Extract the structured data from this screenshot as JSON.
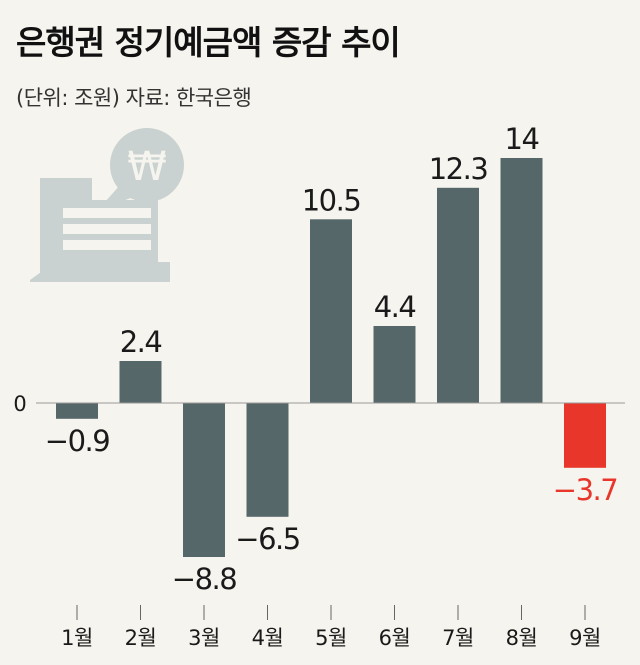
{
  "header": {
    "title": "은행권 정기예금액 증감 추이",
    "subtitle": "(단위: 조원) 자료: 한국은행"
  },
  "icon": {
    "currency_symbol": "₩",
    "name": "bankbook-won-icon"
  },
  "colors": {
    "bar_default": "#566769",
    "bar_highlight": "#e8362a",
    "label_highlight": "#e8362a",
    "label_default": "#1a1a1a",
    "icon_fill": "#c9d2d0",
    "background": "#f6f4ef"
  },
  "chart_data": {
    "type": "bar",
    "title": "은행권 정기예금액 증감 추이",
    "unit": "조원",
    "source": "한국은행",
    "categories": [
      "1월",
      "2월",
      "3월",
      "4월",
      "5월",
      "6월",
      "7월",
      "8월",
      "9월"
    ],
    "values": [
      -0.9,
      2.4,
      -8.8,
      -6.5,
      10.5,
      4.4,
      12.3,
      14,
      -3.7
    ],
    "value_labels": [
      "−0.9",
      "2.4",
      "−8.8",
      "−6.5",
      "10.5",
      "4.4",
      "12.3",
      "14",
      "−3.7"
    ],
    "zero_label": "0",
    "highlight_index": 8,
    "ylim": [
      -10,
      14
    ],
    "grid": false
  }
}
